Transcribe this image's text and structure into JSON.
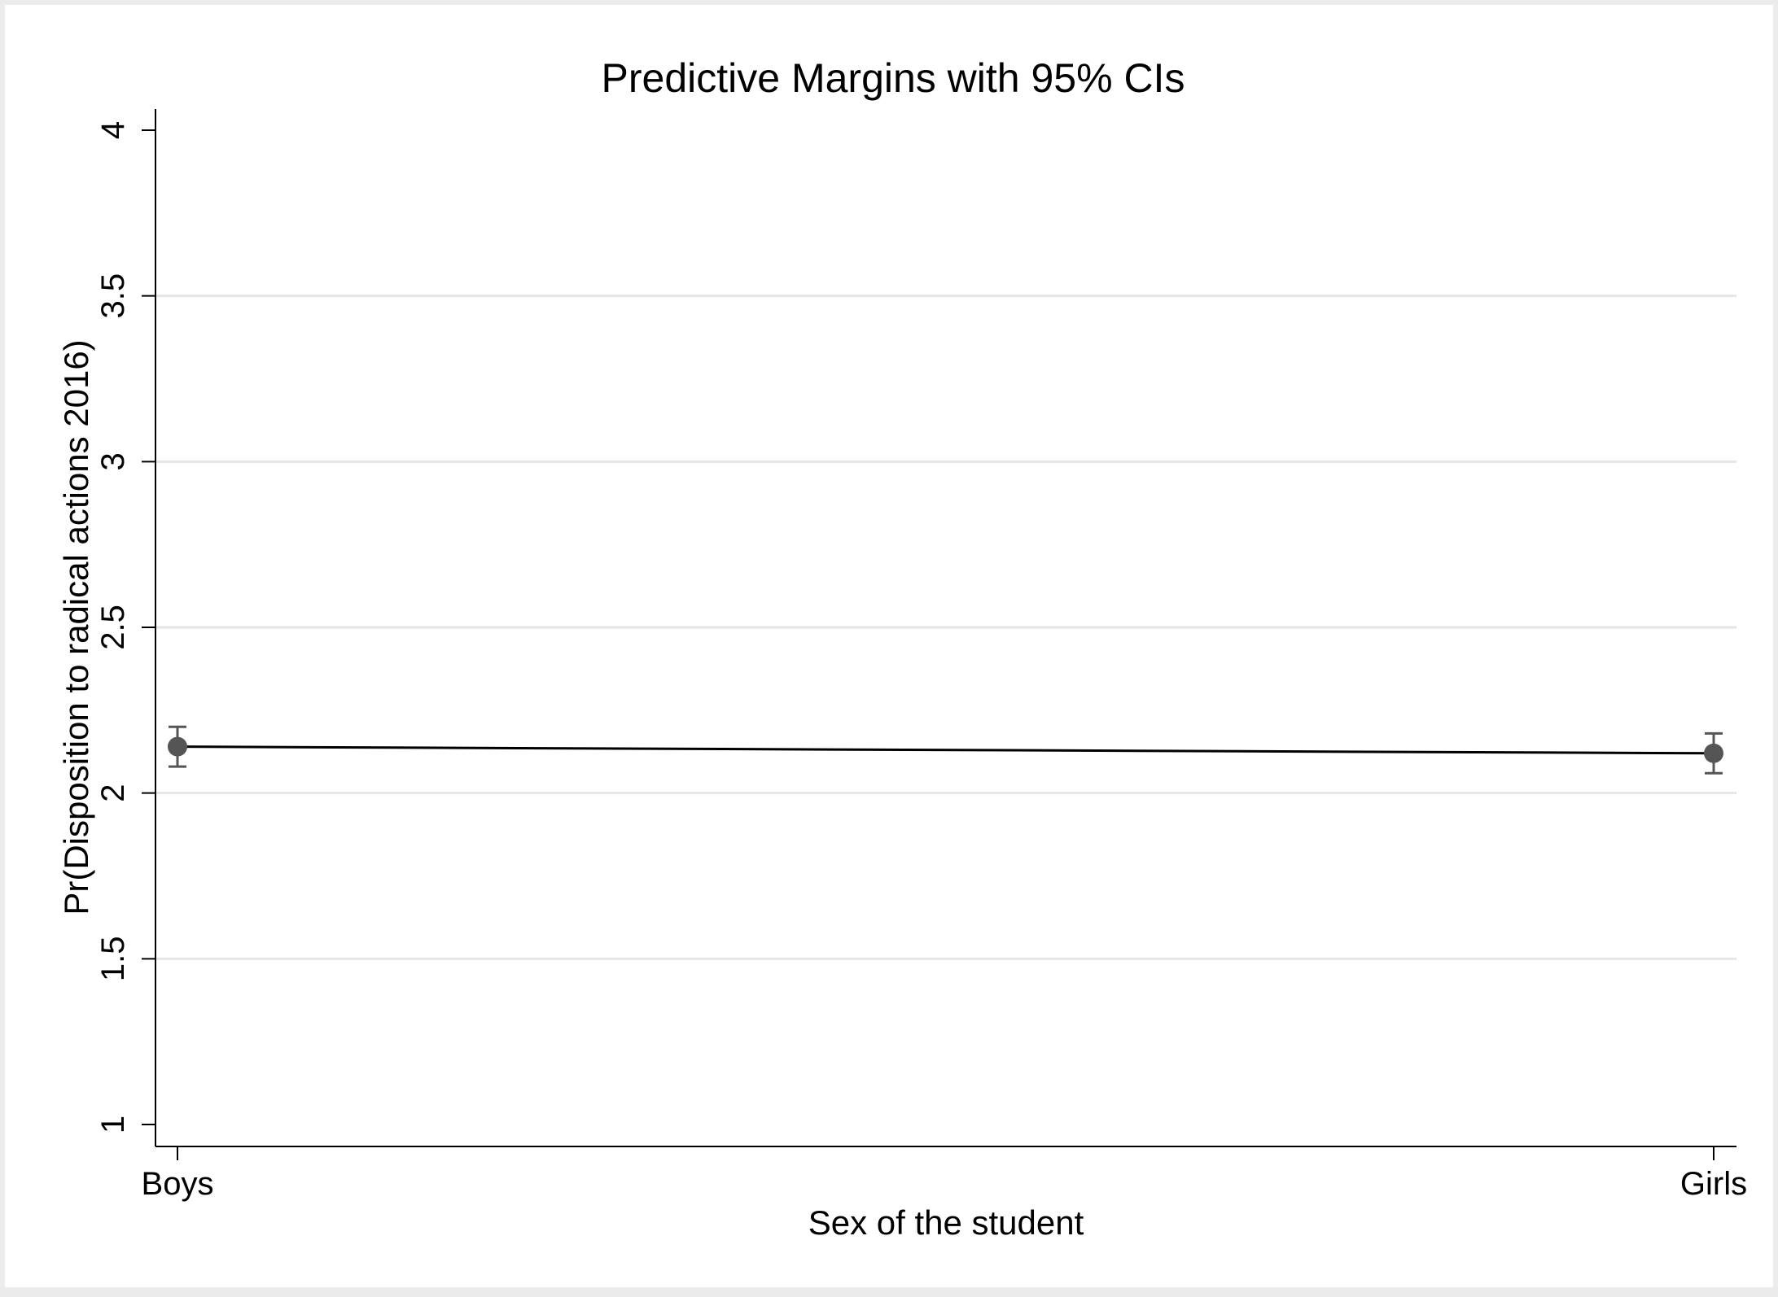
{
  "chart_data": {
    "type": "line",
    "title": "Predictive Margins with 95% CIs",
    "xlabel": "Sex of the student",
    "ylabel": "Pr(Disposition to radical actions 2016)",
    "categories": [
      "Boys",
      "Girls"
    ],
    "y_ticks": [
      "1",
      "1.5",
      "2",
      "2.5",
      "3",
      "3.5",
      "4"
    ],
    "ylim": [
      1,
      4
    ],
    "grid": true,
    "series": [
      {
        "values": [
          2.14,
          2.12
        ],
        "ci_lower": [
          2.08,
          2.06
        ],
        "ci_upper": [
          2.2,
          2.18
        ]
      }
    ],
    "colors": {
      "line": "#000000",
      "marker": "#555555",
      "ci": "#555555",
      "grid": "#e6e6e6",
      "axis": "#000000"
    }
  }
}
